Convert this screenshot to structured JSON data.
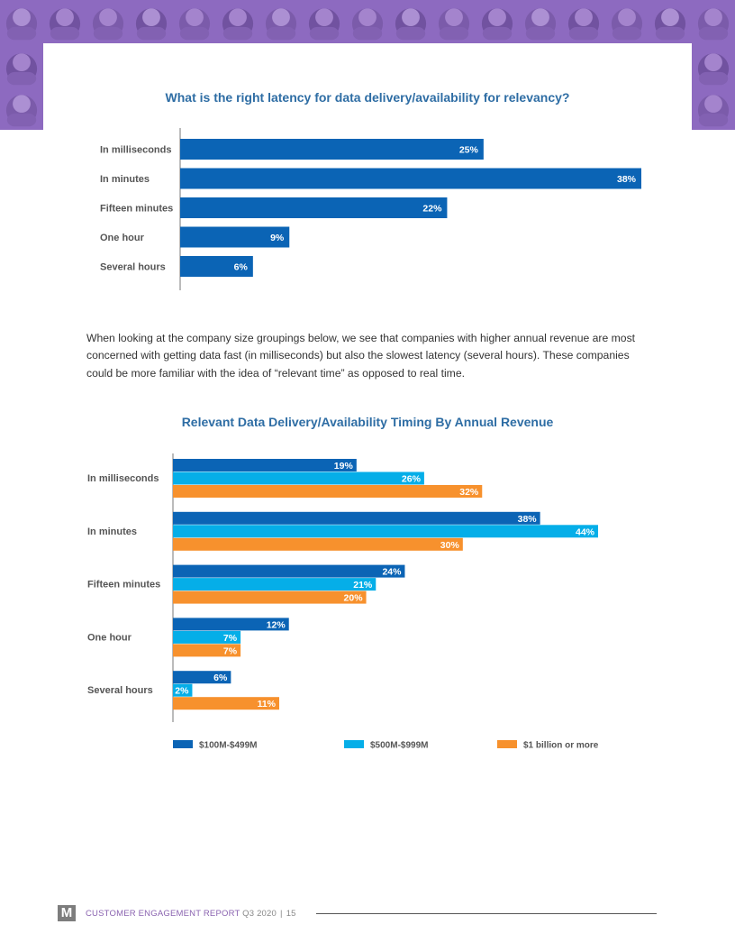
{
  "colors": {
    "banner_purple": "#8d6ac0",
    "title_blue": "#2e6da4",
    "series_dark_blue": "#0b64b5",
    "series_light_blue": "#05aee8",
    "series_orange": "#f7912d",
    "footer_purple": "#8a63b0"
  },
  "banner": {
    "icon": "portrait-photo-collage"
  },
  "chart1": {
    "title": "What is the right latency for data delivery/availability for relevancy?"
  },
  "paragraph": "When looking at the company size groupings below, we see that companies with higher annual revenue are most concerned with getting data fast (in milliseconds) but also the slowest latency (several hours). These companies could be more familiar with the idea of “relevant time” as opposed to real time.",
  "chart2": {
    "title": "Relevant Data Delivery/Availability Timing By Annual Revenue"
  },
  "chart_data": [
    {
      "type": "bar",
      "orientation": "horizontal",
      "title": "What is the right latency for data delivery/availability for relevancy?",
      "categories": [
        "In milliseconds",
        "In minutes",
        "Fifteen minutes",
        "One hour",
        "Several hours"
      ],
      "values": [
        25,
        38,
        22,
        9,
        6
      ],
      "value_labels": [
        "25%",
        "38%",
        "22%",
        "9%",
        "6%"
      ],
      "unit": "%",
      "xlim": [
        0,
        38
      ],
      "grid": false,
      "color": "#0b64b5"
    },
    {
      "type": "bar",
      "orientation": "horizontal",
      "title": "Relevant Data Delivery/Availability Timing By Annual Revenue",
      "categories": [
        "In milliseconds",
        "In minutes",
        "Fifteen minutes",
        "One hour",
        "Several hours"
      ],
      "series": [
        {
          "name": "$100M-$499M",
          "values": [
            19,
            38,
            24,
            12,
            6
          ],
          "color": "#0b64b5"
        },
        {
          "name": "$500M-$999M",
          "values": [
            26,
            44,
            21,
            7,
            2
          ],
          "color": "#05aee8"
        },
        {
          "name": "$1 billion or more",
          "values": [
            32,
            30,
            20,
            7,
            11
          ],
          "color": "#f7912d"
        }
      ],
      "unit": "%",
      "xlim": [
        0,
        44
      ],
      "grid": false,
      "legend": "bottom"
    }
  ],
  "footer": {
    "logo": "M",
    "report": "CUSTOMER ENGAGEMENT REPORT",
    "quarter": "Q3 2020",
    "separator": "|",
    "page_number": "15"
  }
}
